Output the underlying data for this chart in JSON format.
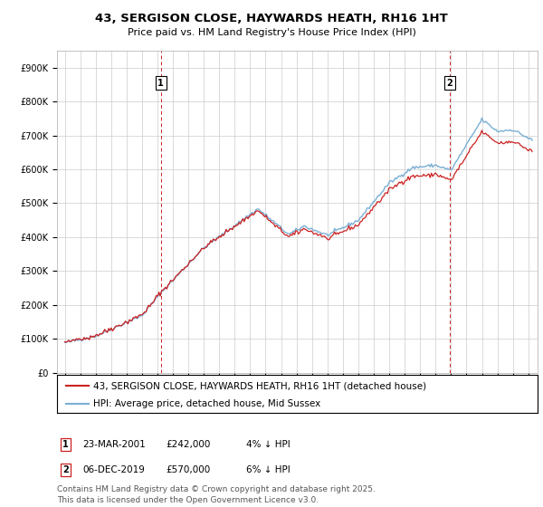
{
  "title": "43, SERGISON CLOSE, HAYWARDS HEATH, RH16 1HT",
  "subtitle": "Price paid vs. HM Land Registry's House Price Index (HPI)",
  "ylim": [
    0,
    950000
  ],
  "yticks": [
    0,
    100000,
    200000,
    300000,
    400000,
    500000,
    600000,
    700000,
    800000,
    900000
  ],
  "ytick_labels": [
    "£0",
    "£100K",
    "£200K",
    "£300K",
    "£400K",
    "£500K",
    "£600K",
    "£700K",
    "£800K",
    "£900K"
  ],
  "hpi_color": "#7bafd4",
  "price_color": "#cc2222",
  "grid_color": "#cccccc",
  "background_color": "#ffffff",
  "sale1_x": 2001.22,
  "sale2_x": 2019.92,
  "legend_house": "43, SERGISON CLOSE, HAYWARDS HEATH, RH16 1HT (detached house)",
  "legend_hpi": "HPI: Average price, detached house, Mid Sussex",
  "ann1_date": "23-MAR-2001",
  "ann1_price": "£242,000",
  "ann1_rel": "4% ↓ HPI",
  "ann2_date": "06-DEC-2019",
  "ann2_price": "£570,000",
  "ann2_rel": "6% ↓ HPI",
  "footer": "Contains HM Land Registry data © Crown copyright and database right 2025.\nThis data is licensed under the Open Government Licence v3.0.",
  "title_fontsize": 9.5,
  "subtitle_fontsize": 8.0,
  "tick_fontsize": 7.0,
  "legend_fontsize": 7.5,
  "annotation_fontsize": 7.5,
  "footer_fontsize": 6.5
}
